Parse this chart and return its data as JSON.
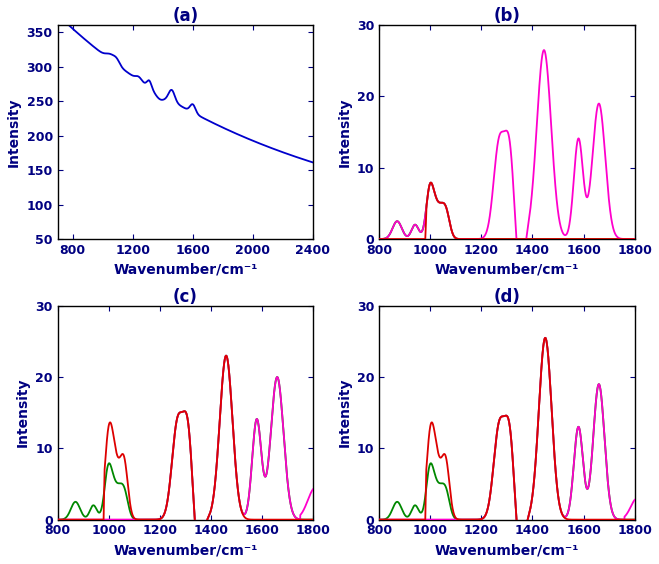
{
  "title_a": "(a)",
  "title_b": "(b)",
  "title_c": "(c)",
  "title_d": "(d)",
  "xlabel": "Wavenumber/cm⁻¹",
  "ylabel": "Intensity",
  "raw_xlim": [
    700,
    2400
  ],
  "raw_ylim": [
    50,
    360
  ],
  "sub_xlim": [
    800,
    1800
  ],
  "sub_ylim": [
    0,
    30
  ],
  "raw_xticks": [
    800,
    1200,
    1600,
    2000,
    2400
  ],
  "raw_yticks": [
    50,
    100,
    150,
    200,
    250,
    300,
    350
  ],
  "sub_xticks": [
    800,
    1000,
    1200,
    1400,
    1600,
    1800
  ],
  "sub_yticks": [
    0,
    10,
    20,
    30
  ],
  "color_raw": "#0000cc",
  "color_magenta": "#ff00cc",
  "color_red": "#dd0000",
  "color_green": "#008800",
  "label_fontsize": 10,
  "tick_fontsize": 9,
  "title_fontsize": 12,
  "linewidth": 1.3
}
